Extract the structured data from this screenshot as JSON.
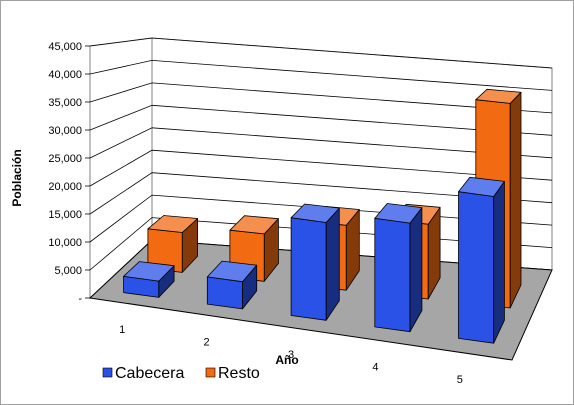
{
  "chart_data": {
    "type": "bar",
    "style": "3d-clustered",
    "categories": [
      "1",
      "2",
      "3",
      "4",
      "5"
    ],
    "series": [
      {
        "name": "Cabecera",
        "color": "#2a52e6",
        "values": [
          3000,
          5000,
          18000,
          20000,
          27000
        ]
      },
      {
        "name": "Resto",
        "color": "#f26a12",
        "values": [
          8000,
          9500,
          13000,
          15000,
          41000
        ]
      }
    ],
    "ylabel": "Población",
    "xlabel": "Año",
    "ylim": [
      0,
      45000
    ],
    "yticks": [
      "-",
      "5,000",
      "10,000",
      "15,000",
      "20,000",
      "25,000",
      "30,000",
      "35,000",
      "40,000",
      "45,000"
    ],
    "grid": true,
    "floor_color": "#a6a6a6",
    "legend_position": "bottom-left"
  }
}
